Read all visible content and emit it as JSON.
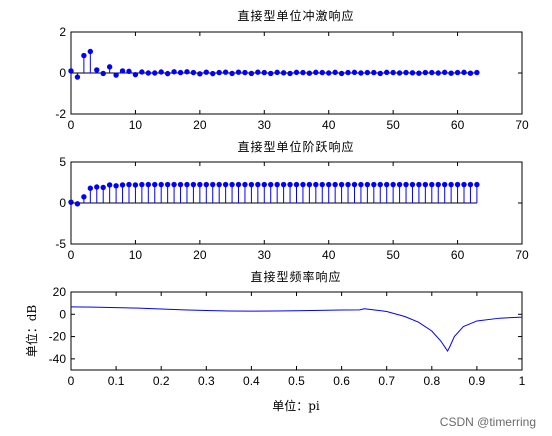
{
  "watermark": "CSDN @timerring",
  "chart_data": [
    {
      "type": "stem",
      "title": "直接型单位冲激响应",
      "xlabel": "",
      "ylabel": "",
      "xlim": [
        0,
        70
      ],
      "ylim": [
        -2,
        2
      ],
      "xticks": [
        0,
        10,
        20,
        30,
        40,
        50,
        60,
        70
      ],
      "yticks": [
        -2,
        0,
        2
      ],
      "color": "#0000ff",
      "x": [
        0,
        1,
        2,
        3,
        4,
        5,
        6,
        7,
        8,
        9,
        10,
        11,
        12,
        13,
        14,
        15,
        16,
        17,
        18,
        19,
        20,
        21,
        22,
        23,
        24,
        25,
        26,
        27,
        28,
        29,
        30,
        31,
        32,
        33,
        34,
        35,
        36,
        37,
        38,
        39,
        40,
        41,
        42,
        43,
        44,
        45,
        46,
        47,
        48,
        49,
        50,
        51,
        52,
        53,
        54,
        55,
        56,
        57,
        58,
        59,
        60,
        61,
        62,
        63
      ],
      "values": [
        0.1,
        -0.2,
        0.85,
        1.05,
        0.15,
        -0.02,
        0.3,
        -0.1,
        0.1,
        0.08,
        -0.08,
        0.05,
        0.0,
        0.0,
        0.05,
        -0.03,
        0.06,
        0.02,
        0.06,
        0.02,
        -0.04,
        0.04,
        -0.03,
        0.02,
        0.04,
        -0.02,
        0.04,
        0.02,
        -0.02,
        0.04,
        0.02,
        -0.02,
        0.03,
        0.01,
        -0.02,
        0.03,
        0.02,
        -0.01,
        0.03,
        0.02,
        0.0,
        0.03,
        -0.02,
        0.02,
        0.03,
        0.0,
        0.02,
        0.02,
        -0.02,
        0.03,
        0.02,
        0.0,
        0.02,
        0.01,
        -0.01,
        0.02,
        0.02,
        0.0,
        0.03,
        -0.01,
        0.02,
        0.03,
        -0.01,
        0.02
      ]
    },
    {
      "type": "stem",
      "title": "直接型单位阶跃响应",
      "xlabel": "",
      "ylabel": "",
      "xlim": [
        0,
        70
      ],
      "ylim": [
        -5,
        5
      ],
      "xticks": [
        0,
        10,
        20,
        30,
        40,
        50,
        60,
        70
      ],
      "yticks": [
        -5,
        0,
        5
      ],
      "color": "#0000ff",
      "x": [
        0,
        1,
        2,
        3,
        4,
        5,
        6,
        7,
        8,
        9,
        10,
        11,
        12,
        13,
        14,
        15,
        16,
        17,
        18,
        19,
        20,
        21,
        22,
        23,
        24,
        25,
        26,
        27,
        28,
        29,
        30,
        31,
        32,
        33,
        34,
        35,
        36,
        37,
        38,
        39,
        40,
        41,
        42,
        43,
        44,
        45,
        46,
        47,
        48,
        49,
        50,
        51,
        52,
        53,
        54,
        55,
        56,
        57,
        58,
        59,
        60,
        61,
        62,
        63
      ],
      "values": [
        0.1,
        -0.1,
        0.75,
        1.8,
        1.95,
        1.9,
        2.2,
        2.1,
        2.2,
        2.25,
        2.2,
        2.25,
        2.25,
        2.25,
        2.25,
        2.25,
        2.25,
        2.25,
        2.25,
        2.25,
        2.25,
        2.25,
        2.25,
        2.25,
        2.25,
        2.25,
        2.25,
        2.25,
        2.25,
        2.25,
        2.25,
        2.25,
        2.25,
        2.25,
        2.25,
        2.25,
        2.25,
        2.25,
        2.25,
        2.25,
        2.25,
        2.25,
        2.25,
        2.25,
        2.25,
        2.25,
        2.25,
        2.25,
        2.25,
        2.25,
        2.25,
        2.25,
        2.25,
        2.25,
        2.25,
        2.25,
        2.25,
        2.25,
        2.25,
        2.25,
        2.25,
        2.25,
        2.25,
        2.25
      ]
    },
    {
      "type": "line",
      "title": "直接型频率响应",
      "xlabel": "单位：pi",
      "ylabel": "单位：dB",
      "xlim": [
        0,
        1
      ],
      "ylim": [
        -50,
        20
      ],
      "xticks": [
        0,
        0.1,
        0.2,
        0.3,
        0.4,
        0.5,
        0.6,
        0.7,
        0.8,
        0.9,
        1
      ],
      "yticks": [
        -40,
        -20,
        0,
        20
      ],
      "color": "#0000ff",
      "x": [
        0,
        0.05,
        0.1,
        0.15,
        0.2,
        0.25,
        0.3,
        0.35,
        0.4,
        0.45,
        0.5,
        0.55,
        0.6,
        0.64,
        0.65,
        0.66,
        0.7,
        0.74,
        0.77,
        0.8,
        0.82,
        0.83,
        0.835,
        0.84,
        0.85,
        0.87,
        0.9,
        0.95,
        1.0
      ],
      "values": [
        6.6,
        6.4,
        6.0,
        5.5,
        4.8,
        4.0,
        3.4,
        3.0,
        2.8,
        3.0,
        3.2,
        3.5,
        3.8,
        4.0,
        5.0,
        4.5,
        2.5,
        -2.0,
        -7.0,
        -15.0,
        -24.0,
        -30.0,
        -33.0,
        -29.0,
        -20.0,
        -11.0,
        -6.0,
        -3.5,
        -2.5
      ]
    }
  ]
}
